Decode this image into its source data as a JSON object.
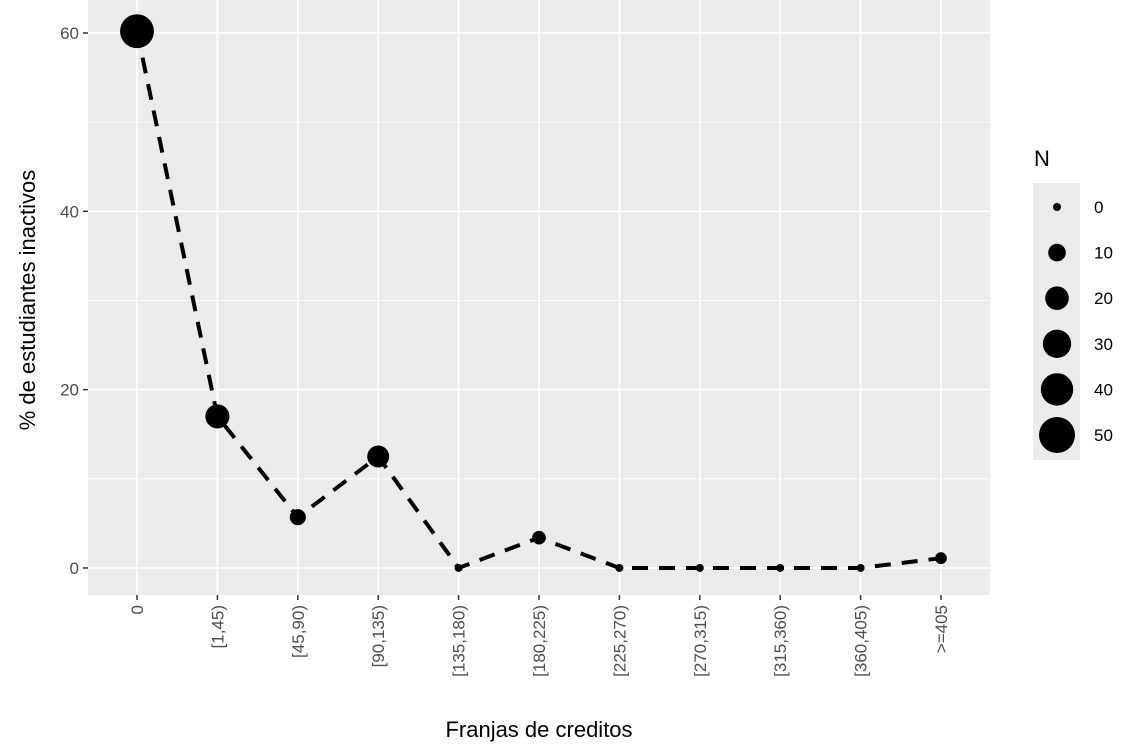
{
  "chart_data": {
    "type": "line",
    "x_label": "Franjas de creditos",
    "y_label": "% de estudiantes inactivos",
    "categories": [
      "0",
      "[1,45)",
      "[45,90)",
      "[90,135)",
      "[135,180)",
      "[180,225)",
      "[225,270)",
      "[270,315)",
      "[315,360)",
      "[360,405)",
      ">=405"
    ],
    "series": [
      {
        "color": "#000000",
        "values": [
          60.2,
          17,
          5.7,
          12.5,
          0,
          3.4,
          0,
          0,
          0,
          0,
          1.1
        ],
        "sizes": [
          44,
          21,
          8,
          17,
          0,
          5,
          0,
          0,
          0,
          0,
          3
        ]
      }
    ],
    "ylim": [
      -3.03,
      63.7
    ],
    "yticks": [
      0,
      20,
      40,
      60
    ],
    "yticks_minor": [
      10,
      30,
      50
    ],
    "grid": true,
    "legend_title": "N",
    "size_ticks": [
      0,
      10,
      20,
      30,
      40,
      50
    ]
  }
}
